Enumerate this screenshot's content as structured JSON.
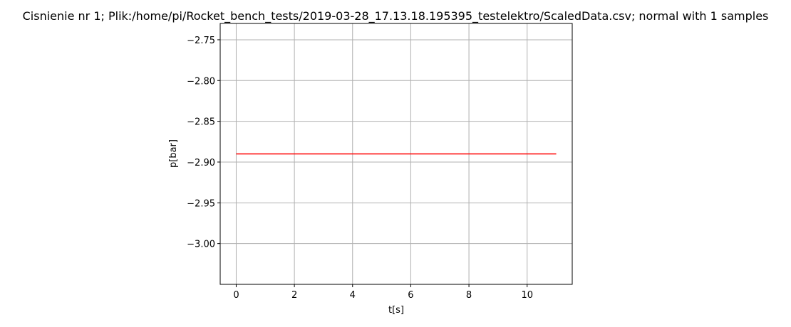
{
  "chart_data": {
    "type": "line",
    "title": "Cisnienie nr 1; Plik:/home/pi/Rocket_bench_tests/2019-03-28_17.13.18.195395_testelektro/ScaledData.csv; normal with 1 samples",
    "xlabel": "t[s]",
    "ylabel": "p[bar]",
    "xlim": [
      -0.55,
      11.55
    ],
    "ylim": [
      -3.05,
      -2.73
    ],
    "xticks": [
      0,
      2,
      4,
      6,
      8,
      10
    ],
    "xtick_labels": [
      "0",
      "2",
      "4",
      "6",
      "8",
      "10"
    ],
    "yticks": [
      -2.75,
      -2.8,
      -2.85,
      -2.9,
      -2.95,
      -3.0
    ],
    "ytick_labels": [
      "−2.75",
      "−2.80",
      "−2.85",
      "−2.90",
      "−2.95",
      "−3.00"
    ],
    "grid": true,
    "series": [
      {
        "color": "#ff0000",
        "x": [
          0,
          11
        ],
        "y": [
          -2.89,
          -2.89
        ]
      }
    ]
  }
}
